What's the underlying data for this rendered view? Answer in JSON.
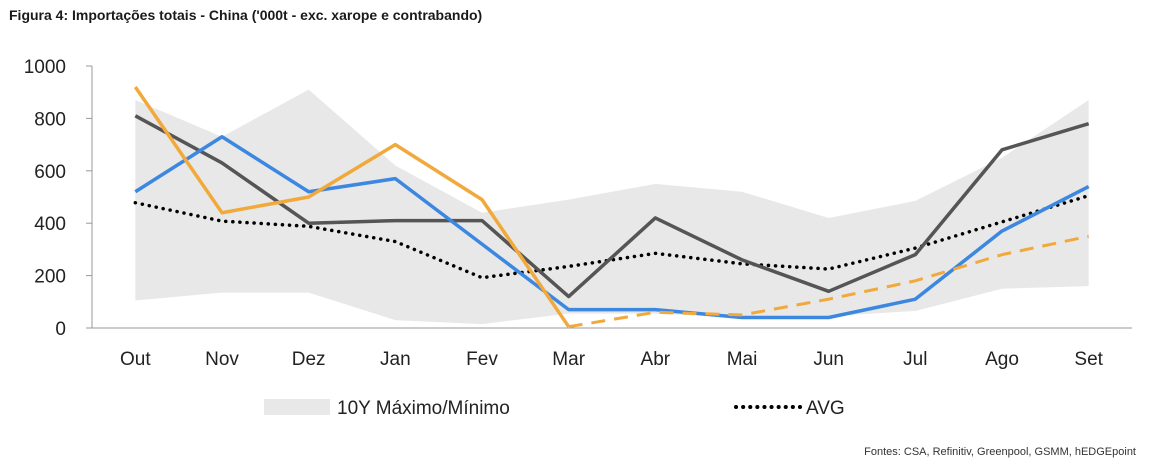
{
  "title": "Figura 4: Importações totais - China ('000t - exc. xarope e contrabando)",
  "source": "Fontes: CSA, Refinitiv, Greenpool, GSMM, hEDGEpoint",
  "chart_data": {
    "type": "line",
    "title": "Figura 4: Importações totais - China ('000t - exc. xarope e contrabando)",
    "categories": [
      "Out",
      "Nov",
      "Dez",
      "Jan",
      "Fev",
      "Mar",
      "Abr",
      "Mai",
      "Jun",
      "Jul",
      "Ago",
      "Set"
    ],
    "ylim": [
      0,
      1000
    ],
    "yticks": [
      0,
      200,
      400,
      600,
      800,
      1000
    ],
    "grid": false,
    "legend_position": "bottom",
    "band": {
      "name": "10Y Máximo/Mínimo",
      "color": "#e8e8e8",
      "max": [
        870,
        730,
        910,
        620,
        440,
        490,
        550,
        520,
        420,
        485,
        650,
        870
      ],
      "min": [
        105,
        135,
        135,
        30,
        15,
        55,
        55,
        40,
        45,
        65,
        150,
        160
      ]
    },
    "series": [
      {
        "name": "AVG",
        "color": "#000000",
        "style": "dotted",
        "values": [
          478,
          408,
          388,
          330,
          192,
          235,
          285,
          245,
          225,
          305,
          405,
          505
        ]
      },
      {
        "color": "#555555",
        "style": "solid",
        "values": [
          810,
          630,
          400,
          410,
          410,
          120,
          420,
          260,
          140,
          280,
          680,
          780
        ]
      },
      {
        "color": "#3c87e0",
        "style": "solid",
        "values": [
          520,
          730,
          520,
          570,
          320,
          70,
          70,
          40,
          40,
          110,
          370,
          540
        ]
      },
      {
        "color": "#f2a93b",
        "style": "solid",
        "values": [
          920,
          440,
          500,
          700,
          490,
          5,
          null,
          null,
          null,
          null,
          null,
          null
        ]
      },
      {
        "color": "#f2a93b",
        "style": "dashed",
        "values": [
          null,
          null,
          null,
          null,
          null,
          5,
          60,
          50,
          110,
          180,
          280,
          350
        ]
      }
    ]
  }
}
